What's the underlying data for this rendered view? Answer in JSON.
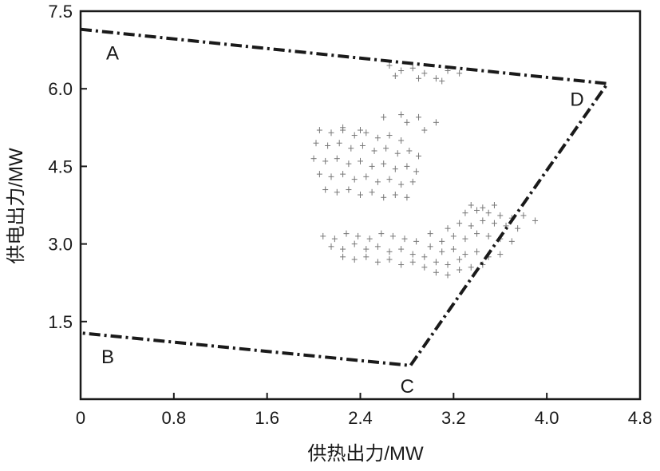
{
  "chart_data": {
    "type": "scatter",
    "title": "",
    "xlabel": "供热出力/MW",
    "ylabel": "供电出力/MW",
    "xlim": [
      0,
      4.8
    ],
    "ylim": [
      0,
      7.5
    ],
    "x_ticks": [
      "0",
      "0.8",
      "1.6",
      "2.4",
      "3.2",
      "4.0",
      "4.8"
    ],
    "x_tick_values": [
      0,
      0.8,
      1.6,
      2.4,
      3.2,
      4.0,
      4.8
    ],
    "y_ticks": [
      "1.5",
      "3.0",
      "4.5",
      "6.0",
      "7.5"
    ],
    "y_tick_values": [
      1.5,
      3.0,
      4.5,
      6.0,
      7.5
    ],
    "grid": false,
    "legend": "none",
    "region": {
      "line_style": "dash-dot",
      "color": "#1a1a1a",
      "vertices": [
        {
          "label": "A",
          "x": 0.0,
          "y": 7.15
        },
        {
          "label": "D",
          "x": 4.52,
          "y": 6.1
        },
        {
          "label": "C",
          "x": 2.83,
          "y": 0.65
        },
        {
          "label": "B",
          "x": 0.0,
          "y": 1.28
        }
      ]
    },
    "series": [
      {
        "marker": "plus",
        "color": "#777777",
        "points": [
          [
            2.65,
            6.45
          ],
          [
            2.75,
            6.35
          ],
          [
            2.85,
            6.4
          ],
          [
            2.95,
            6.3
          ],
          [
            3.05,
            6.2
          ],
          [
            3.15,
            6.35
          ],
          [
            3.25,
            6.3
          ],
          [
            2.7,
            6.25
          ],
          [
            2.9,
            6.2
          ],
          [
            3.1,
            6.15
          ],
          [
            2.05,
            5.2
          ],
          [
            2.15,
            5.15
          ],
          [
            2.25,
            5.2
          ],
          [
            2.35,
            5.1
          ],
          [
            2.45,
            5.15
          ],
          [
            2.55,
            5.05
          ],
          [
            2.65,
            5.1
          ],
          [
            2.75,
            5.0
          ],
          [
            2.25,
            5.25
          ],
          [
            2.4,
            5.2
          ],
          [
            2.6,
            5.45
          ],
          [
            2.75,
            5.5
          ],
          [
            2.9,
            5.45
          ],
          [
            3.05,
            5.35
          ],
          [
            2.8,
            5.35
          ],
          [
            2.95,
            5.2
          ],
          [
            2.02,
            4.95
          ],
          [
            2.12,
            4.9
          ],
          [
            2.22,
            4.95
          ],
          [
            2.32,
            4.85
          ],
          [
            2.42,
            4.9
          ],
          [
            2.52,
            4.8
          ],
          [
            2.62,
            4.85
          ],
          [
            2.72,
            4.75
          ],
          [
            2.82,
            4.8
          ],
          [
            2.9,
            4.7
          ],
          [
            2.0,
            4.65
          ],
          [
            2.1,
            4.6
          ],
          [
            2.2,
            4.65
          ],
          [
            2.3,
            4.55
          ],
          [
            2.4,
            4.6
          ],
          [
            2.5,
            4.5
          ],
          [
            2.6,
            4.55
          ],
          [
            2.7,
            4.45
          ],
          [
            2.8,
            4.5
          ],
          [
            2.88,
            4.4
          ],
          [
            2.05,
            4.35
          ],
          [
            2.15,
            4.3
          ],
          [
            2.25,
            4.35
          ],
          [
            2.35,
            4.25
          ],
          [
            2.45,
            4.3
          ],
          [
            2.55,
            4.2
          ],
          [
            2.65,
            4.25
          ],
          [
            2.75,
            4.15
          ],
          [
            2.85,
            4.2
          ],
          [
            2.1,
            4.05
          ],
          [
            2.2,
            4.0
          ],
          [
            2.3,
            4.05
          ],
          [
            2.4,
            3.95
          ],
          [
            2.5,
            4.0
          ],
          [
            2.6,
            3.9
          ],
          [
            2.7,
            3.95
          ],
          [
            2.8,
            3.9
          ],
          [
            2.08,
            3.15
          ],
          [
            2.18,
            3.1
          ],
          [
            2.28,
            3.2
          ],
          [
            2.38,
            3.15
          ],
          [
            2.48,
            3.1
          ],
          [
            2.58,
            3.2
          ],
          [
            2.68,
            3.15
          ],
          [
            2.78,
            3.1
          ],
          [
            2.88,
            3.05
          ],
          [
            2.15,
            2.95
          ],
          [
            2.25,
            2.9
          ],
          [
            2.35,
            3.0
          ],
          [
            2.45,
            2.9
          ],
          [
            2.55,
            2.95
          ],
          [
            2.65,
            2.85
          ],
          [
            2.75,
            2.9
          ],
          [
            2.85,
            2.8
          ],
          [
            2.95,
            2.75
          ],
          [
            2.25,
            2.75
          ],
          [
            2.35,
            2.7
          ],
          [
            2.45,
            2.75
          ],
          [
            2.55,
            2.65
          ],
          [
            2.65,
            2.7
          ],
          [
            2.75,
            2.6
          ],
          [
            2.85,
            2.65
          ],
          [
            2.95,
            2.55
          ],
          [
            3.0,
            2.95
          ],
          [
            3.1,
            2.85
          ],
          [
            3.2,
            2.9
          ],
          [
            3.3,
            2.8
          ],
          [
            3.4,
            2.85
          ],
          [
            3.5,
            2.75
          ],
          [
            3.6,
            2.8
          ],
          [
            3.05,
            2.65
          ],
          [
            3.15,
            2.6
          ],
          [
            3.25,
            2.7
          ],
          [
            3.35,
            2.55
          ],
          [
            3.45,
            2.6
          ],
          [
            3.05,
            2.45
          ],
          [
            3.15,
            2.4
          ],
          [
            3.25,
            2.5
          ],
          [
            3.2,
            3.15
          ],
          [
            3.3,
            3.1
          ],
          [
            3.4,
            3.2
          ],
          [
            3.5,
            3.15
          ],
          [
            3.6,
            3.1
          ],
          [
            3.7,
            3.05
          ],
          [
            3.25,
            3.4
          ],
          [
            3.35,
            3.35
          ],
          [
            3.45,
            3.45
          ],
          [
            3.55,
            3.4
          ],
          [
            3.65,
            3.35
          ],
          [
            3.75,
            3.3
          ],
          [
            3.3,
            3.6
          ],
          [
            3.4,
            3.65
          ],
          [
            3.5,
            3.6
          ],
          [
            3.6,
            3.55
          ],
          [
            3.7,
            3.5
          ],
          [
            3.8,
            3.55
          ],
          [
            3.9,
            3.45
          ],
          [
            3.35,
            3.75
          ],
          [
            3.45,
            3.7
          ],
          [
            3.55,
            3.75
          ],
          [
            3.15,
            3.3
          ],
          [
            3.1,
            3.05
          ],
          [
            3.0,
            3.2
          ]
        ]
      }
    ]
  }
}
